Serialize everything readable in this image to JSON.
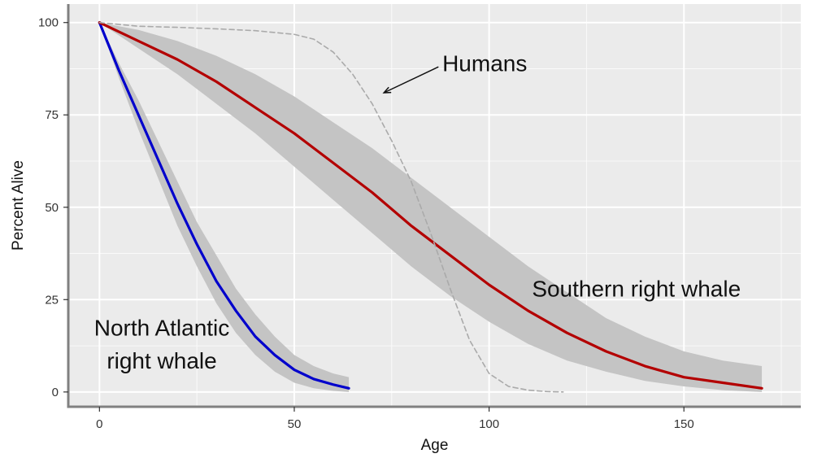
{
  "chart_data": {
    "type": "line",
    "xlabel": "Age",
    "ylabel": "Percent Alive",
    "xlim": [
      -8,
      180
    ],
    "ylim": [
      -4,
      105
    ],
    "x_ticks": [
      0,
      50,
      100,
      150
    ],
    "y_ticks": [
      0,
      25,
      50,
      75,
      100
    ],
    "x_minor": [
      25,
      75,
      125,
      175
    ],
    "y_minor": [
      12.5,
      37.5,
      62.5,
      87.5
    ],
    "grid": true,
    "panel_color": "#ebebeb",
    "series": [
      {
        "id": "north_atlantic",
        "color": "#0000cc",
        "x": [
          0,
          5,
          10,
          15,
          20,
          25,
          30,
          35,
          40,
          45,
          50,
          55,
          60,
          64
        ],
        "y": [
          100,
          87,
          75,
          63,
          51,
          40,
          30,
          22,
          15,
          10,
          6,
          3.5,
          2,
          1
        ],
        "lower": [
          100,
          85,
          71,
          58,
          45,
          34,
          24,
          16,
          10,
          5.5,
          2.5,
          1,
          0.3,
          0
        ],
        "upper": [
          100,
          89,
          79,
          68,
          57,
          46,
          37,
          28,
          21,
          15,
          10,
          7,
          5,
          4
        ]
      },
      {
        "id": "southern",
        "color": "#b30000",
        "x": [
          0,
          10,
          20,
          30,
          40,
          50,
          60,
          70,
          80,
          90,
          100,
          110,
          120,
          130,
          140,
          150,
          160,
          170
        ],
        "y": [
          100,
          95,
          90,
          84,
          77,
          70,
          62,
          54,
          45,
          37,
          29,
          22,
          16,
          11,
          7,
          4,
          2.5,
          1
        ],
        "lower": [
          100,
          93,
          86,
          78,
          70,
          61,
          52,
          43,
          34,
          26,
          19,
          13,
          8.5,
          5.5,
          3,
          1.5,
          0.5,
          0
        ],
        "upper": [
          100,
          98,
          95,
          91,
          86,
          80,
          73,
          66,
          58,
          50,
          42,
          34,
          27,
          20,
          15,
          11,
          8.5,
          7
        ]
      },
      {
        "id": "humans",
        "color": "#aaaaaa",
        "dashed": true,
        "x": [
          0,
          10,
          20,
          30,
          40,
          50,
          55,
          60,
          65,
          70,
          75,
          80,
          85,
          90,
          95,
          100,
          105,
          110,
          115,
          119
        ],
        "y": [
          100,
          99,
          98.7,
          98.3,
          97.8,
          96.8,
          95.5,
          92,
          86,
          78,
          68,
          57,
          43,
          28,
          14,
          5,
          1.5,
          0.5,
          0.1,
          0
        ]
      }
    ],
    "annotations": [
      {
        "text": "Humans",
        "x": 88,
        "y": 89
      },
      {
        "text": "Southern right whale",
        "x": 111,
        "y": 28
      },
      {
        "text": "North Atlantic",
        "x": 16,
        "y": 17.5
      },
      {
        "text": "right whale",
        "x": 16,
        "y": 8.5
      }
    ],
    "arrow": {
      "from": [
        87,
        88
      ],
      "to": [
        73,
        81
      ]
    }
  }
}
